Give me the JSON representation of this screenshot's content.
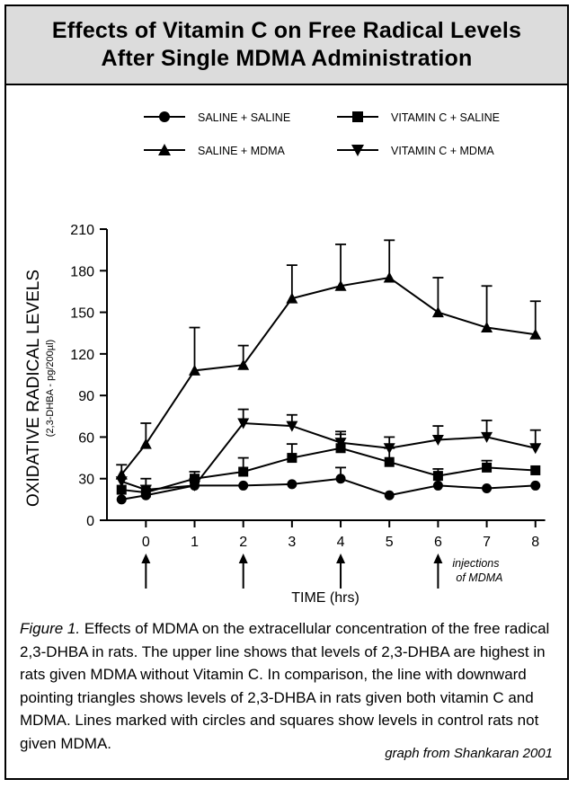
{
  "title": {
    "line1": "Effects of Vitamin C on Free Radical Levels",
    "line2": "After Single MDMA Administration"
  },
  "chart_data": {
    "type": "line",
    "ylabel": "OXIDATIVE RADICAL LEVELS",
    "ylabel_sub": "(2,3-DHBA - pg/200µl)",
    "xlabel": "TIME (hrs)",
    "x": [
      -0.5,
      0,
      1,
      2,
      3,
      4,
      5,
      6,
      7,
      8
    ],
    "xticks": [
      0,
      1,
      2,
      3,
      4,
      5,
      6,
      7,
      8
    ],
    "yticks": [
      0,
      30,
      60,
      90,
      120,
      150,
      180,
      210
    ],
    "xlim": [
      -0.8,
      8.3
    ],
    "ylim": [
      0,
      210
    ],
    "legend_position": "top",
    "injection_times": [
      0,
      2,
      4,
      6
    ],
    "injection_label": [
      "injections",
      "of MDMA"
    ],
    "series": [
      {
        "name": "SALINE + SALINE",
        "marker": "circle",
        "values": [
          15,
          18,
          25,
          25,
          26,
          30,
          18,
          25,
          23,
          25
        ],
        "errors": [
          0,
          0,
          0,
          0,
          0,
          8,
          0,
          0,
          0,
          0
        ]
      },
      {
        "name": "VITAMIN C + SALINE",
        "marker": "square",
        "values": [
          22,
          20,
          30,
          35,
          45,
          52,
          42,
          32,
          38,
          36
        ],
        "errors": [
          8,
          5,
          5,
          10,
          10,
          10,
          10,
          5,
          5,
          0
        ]
      },
      {
        "name": "SALINE + MDMA",
        "marker": "triangle-up",
        "values": [
          33,
          55,
          108,
          112,
          160,
          169,
          175,
          150,
          139,
          134
        ],
        "errors": [
          0,
          15,
          31,
          14,
          24,
          30,
          27,
          25,
          30,
          24
        ]
      },
      {
        "name": "VITAMIN C + MDMA",
        "marker": "triangle-down",
        "values": [
          28,
          22,
          25,
          70,
          68,
          56,
          52,
          58,
          60,
          52
        ],
        "errors": [
          12,
          8,
          5,
          10,
          8,
          8,
          8,
          10,
          12,
          13
        ]
      }
    ]
  },
  "caption": {
    "figure_label": "Figure 1.",
    "text": " Effects of MDMA on the extracellular concentration of the free radical 2,3-DHBA in rats. The upper line shows that levels of 2,3-DHBA are highest in rats given MDMA without Vitamin C. In comparison, the line with downward pointing triangles shows levels of 2,3-DHBA in rats given both vitamin C and MDMA. Lines marked with circles and squares show levels in control rats not given MDMA."
  },
  "credit": "graph from Shankaran 2001"
}
